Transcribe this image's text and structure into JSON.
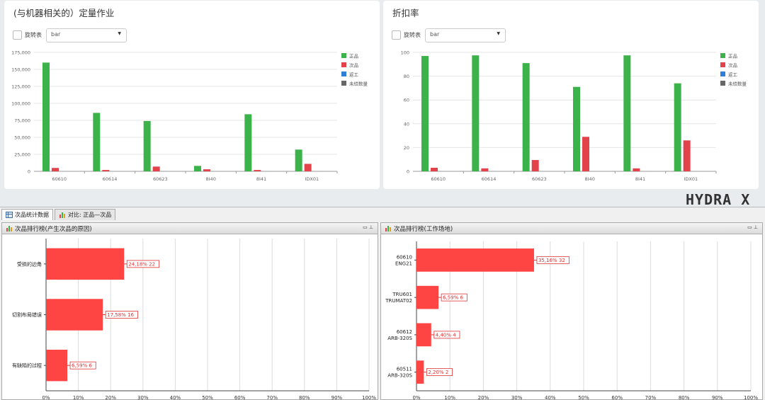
{
  "top_left": {
    "title": "(与机器相关的）定量作业",
    "rotate_label": "旋转表",
    "select_value": "bar"
  },
  "top_right": {
    "title": "折扣率",
    "rotate_label": "旋转表",
    "select_value": "bar"
  },
  "brand": "HYDRA X",
  "tabs": [
    {
      "label": "次品统计数据"
    },
    {
      "label": "对比: 正品—次品"
    }
  ],
  "bottom_left": {
    "title": "次品排行榜(产生次品的原因)",
    "controls": "▭ ⊥"
  },
  "bottom_right": {
    "title": "次品排行榜(工作场地)",
    "controls": "▭ ⊥"
  },
  "colors": {
    "good": "#3cb34a",
    "defect": "#e2434b",
    "rework": "#2f7fd9",
    "unfinished": "#666666",
    "hbar": "#ff4444"
  },
  "chart_data": [
    {
      "type": "bar",
      "categories": [
        "60610",
        "60614",
        "60623",
        "8I40",
        "8I41",
        "IDX01"
      ],
      "series": [
        {
          "name": "正品",
          "values": [
            160000,
            86000,
            74000,
            8000,
            84000,
            32000
          ]
        },
        {
          "name": "次品",
          "values": [
            5000,
            2000,
            7000,
            3000,
            2000,
            11000
          ]
        },
        {
          "name": "返工",
          "values": [
            0,
            0,
            0,
            0,
            0,
            0
          ]
        },
        {
          "name": "未结数量",
          "values": [
            0,
            0,
            0,
            0,
            0,
            0
          ]
        }
      ],
      "ylim": [
        0,
        175000
      ],
      "yticks": [
        "0",
        "25,000",
        "50,000",
        "75,000",
        "100,000",
        "125,000",
        "150,000",
        "175,000"
      ],
      "legend": "top-right",
      "grid": true
    },
    {
      "type": "bar",
      "categories": [
        "60610",
        "60614",
        "60623",
        "8I40",
        "8I41",
        "IDX01"
      ],
      "series": [
        {
          "name": "正品",
          "values": [
            97,
            97.5,
            91,
            71,
            97.5,
            74
          ]
        },
        {
          "name": "次品",
          "values": [
            3,
            2.5,
            9.5,
            29,
            2.5,
            26
          ]
        },
        {
          "name": "返工",
          "values": [
            0,
            0,
            0,
            0,
            0,
            0
          ]
        },
        {
          "name": "未结数量",
          "values": [
            0,
            0,
            0,
            0,
            0,
            0
          ]
        }
      ],
      "ylim": [
        0,
        100
      ],
      "yticks": [
        "0",
        "20",
        "40",
        "60",
        "80",
        "100"
      ],
      "legend": "top-right",
      "grid": true
    },
    {
      "type": "bar",
      "orientation": "horizontal",
      "categories": [
        [
          "受损的边角"
        ],
        [
          "切割布局错误"
        ],
        [
          "有缺陷的过程"
        ]
      ],
      "values": [
        24.18,
        17.58,
        6.59
      ],
      "labels": [
        "24,18% 22",
        "17,58% 16",
        "6,59% 6"
      ],
      "xlim": [
        0,
        100
      ],
      "xticks": [
        "0%",
        "10%",
        "20%",
        "30%",
        "40%",
        "50%",
        "60%",
        "70%",
        "80%",
        "90%",
        "100%"
      ],
      "grid": true
    },
    {
      "type": "bar",
      "orientation": "horizontal",
      "categories": [
        [
          "60610",
          "ENG21"
        ],
        [
          "TRU601",
          "TRUMAT02"
        ],
        [
          "60612",
          "ARB-320S"
        ],
        [
          "60511",
          "ARB-320S"
        ]
      ],
      "values": [
        35.16,
        6.59,
        4.4,
        2.2
      ],
      "labels": [
        "35,16% 32",
        "6,59% 6",
        "4,40% 4",
        "2,20% 2"
      ],
      "xlim": [
        0,
        100
      ],
      "xticks": [
        "0%",
        "10%",
        "20%",
        "30%",
        "40%",
        "50%",
        "60%",
        "70%",
        "80%",
        "90%",
        "100%"
      ],
      "grid": true
    }
  ]
}
